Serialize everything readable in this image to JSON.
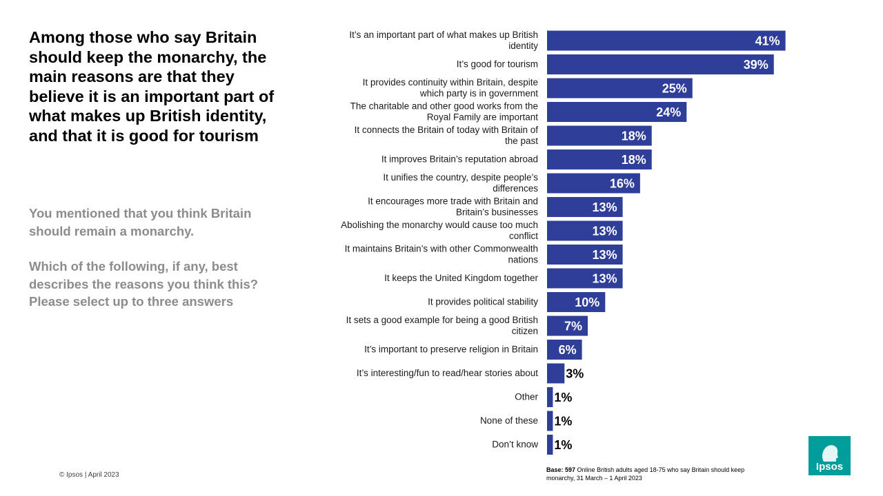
{
  "headline": "Among those who say Britain should keep the monarchy, the main reasons are that they believe it is an important part of what makes up British identity, and that it is good for tourism",
  "question_intro": "You mentioned that you think Britain should remain a monarchy.",
  "question_text": "Which of the following, if any, best describes the reasons you think this? Please select up to three answers",
  "copyright": "© Ipsos | April 2023",
  "base_label": "Base: 597",
  "base_text": "Online British adults aged 18-75 who say Britain should keep monarchy, 31 March – 1 April 2023",
  "logo_text": "Ipsos",
  "colors": {
    "bar": "#2f3f99",
    "logo": "#009d9c",
    "label_inside": "#ffffff",
    "label_outside": "#000000"
  },
  "chart_data": {
    "type": "bar",
    "orientation": "horizontal",
    "categories": [
      "It’s an important part of what makes up British identity",
      "It’s good for tourism",
      "It provides continuity within Britain, despite which party is in government",
      "The charitable and other good works from the Royal Family are important",
      "It connects the Britain of today with Britain of the past",
      "It improves Britain’s reputation abroad",
      "It unifies the country, despite people’s differences",
      "It encourages more trade with Britain and Britain’s businesses",
      "Abolishing the monarchy would cause too much conflict",
      "It maintains Britain’s with other Commonwealth nations",
      "It keeps the United Kingdom together",
      "It provides political stability",
      "It sets a good example for being a good British citizen",
      "It’s important to preserve religion in Britain",
      "It’s interesting/fun to read/hear stories about",
      "Other",
      "None of these",
      "Don’t know"
    ],
    "values": [
      41,
      39,
      25,
      24,
      18,
      18,
      16,
      13,
      13,
      13,
      13,
      10,
      7,
      6,
      3,
      1,
      1,
      1
    ],
    "value_labels": [
      "41%",
      "39%",
      "25%",
      "24%",
      "18%",
      "18%",
      "16%",
      "13%",
      "13%",
      "13%",
      "13%",
      "10%",
      "7%",
      "6%",
      "3%",
      "1%",
      "1%",
      "1%"
    ],
    "xlim": [
      0,
      100
    ],
    "grid": false,
    "legend": "none"
  }
}
